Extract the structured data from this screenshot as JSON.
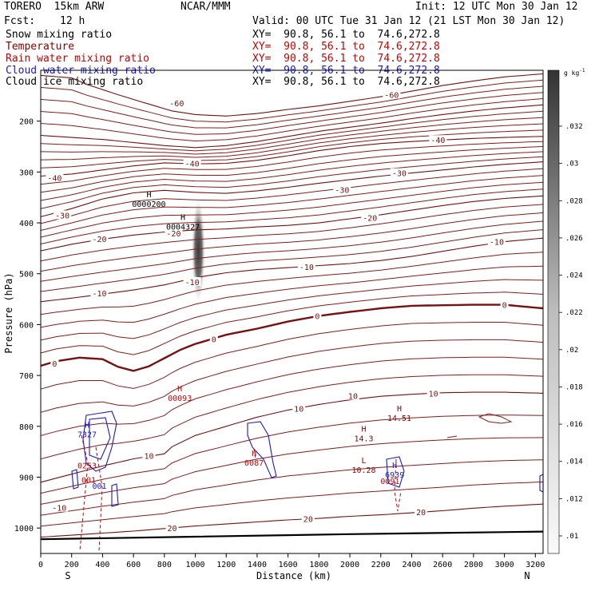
{
  "header": {
    "model": "TORERO  15km ARW",
    "center": "NCAR/MMM",
    "init": "Init: 12 UTC Mon 30 Jan 12",
    "fcst_label": "Fcst:",
    "fcst_value": "12 h",
    "valid": "Valid: 00 UTC Tue 31 Jan 12 (21 LST Mon 30 Jan 12)"
  },
  "fields": [
    {
      "name": "Snow mixing ratio",
      "xy": "XY=  90.8, 56.1 to  74.6,272.8",
      "color": "#000000"
    },
    {
      "name": "Temperature",
      "xy": "XY=  90.8, 56.1 to  74.6,272.8",
      "color": "#8b0000"
    },
    {
      "name": "Rain water mixing ratio",
      "xy": "XY=  90.8, 56.1 to  74.6,272.8",
      "color": "#cc0000"
    },
    {
      "name": "Cloud water mixing ratio",
      "xy": "XY=  90.8, 56.1 to  74.6,272.8",
      "color": "#1a1acc"
    },
    {
      "name": "Cloud ice mixing ratio",
      "xy": "XY=  90.8, 56.1 to  74.6,272.8",
      "color": "#000000"
    }
  ],
  "chart_data": {
    "type": "contour cross-section",
    "xlabel": "Distance (km)",
    "ylabel": "Pressure (hPa)",
    "xlim": [
      0,
      3250
    ],
    "ylim": [
      1050,
      100
    ],
    "x_ticks": [
      0,
      200,
      400,
      600,
      800,
      1000,
      1200,
      1400,
      1600,
      1800,
      2000,
      2200,
      2400,
      2600,
      2800,
      3000,
      3200
    ],
    "y_ticks": [
      200,
      300,
      400,
      500,
      600,
      700,
      800,
      900,
      1000
    ],
    "end_labels": {
      "left": "S",
      "right": "N"
    },
    "colorbar": {
      "unit": "g kg",
      "unit_exp": "-1",
      "ticks": [
        ".01",
        ".012",
        ".014",
        ".016",
        ".018",
        ".02",
        ".022",
        ".024",
        ".026",
        ".028",
        ".03",
        ".032"
      ]
    },
    "temperature_contours": [
      {
        "label": "-60",
        "x": [
          0,
          200,
          300,
          500,
          650,
          850,
          1000,
          1200,
          1400,
          1600,
          1800,
          2000,
          2200,
          2400,
          2600,
          2800,
          3000,
          3250
        ],
        "p": [
          110,
          115,
          128,
          148,
          162,
          180,
          187,
          190,
          185,
          177,
          170,
          161,
          152,
          141,
          130,
          121,
          113,
          107
        ],
        "label_at": [
          [
            880,
            164
          ],
          [
            2270,
            148
          ]
        ]
      },
      {
        "label": "-50",
        "x": [
          0,
          200,
          400,
          600,
          800,
          1000,
          1200,
          1400,
          1600,
          1800,
          2000,
          2200,
          2400,
          2600,
          2800,
          3000,
          3250
        ],
        "p": [
          228,
          232,
          236,
          242,
          248,
          252,
          248,
          240,
          230,
          220,
          212,
          204,
          195,
          187,
          180,
          174,
          168
        ],
        "label_at": []
      },
      {
        "label": "-40",
        "x": [
          0,
          200,
          400,
          600,
          800,
          1000,
          1200,
          1400,
          1600,
          1800,
          2000,
          2200,
          2400,
          2600,
          2800,
          3000,
          3250
        ],
        "p": [
          308,
          304,
          296,
          288,
          282,
          284,
          283,
          277,
          268,
          258,
          250,
          244,
          240,
          237,
          234,
          232,
          230
        ],
        "label_at": [
          [
            980,
            283
          ],
          [
            2570,
            237
          ]
        ]
      },
      {
        "label": "-30",
        "x": [
          0,
          200,
          400,
          600,
          800,
          1000,
          1200,
          1400,
          1600,
          1800,
          2000,
          2200,
          2400,
          2600,
          2800,
          3000,
          3250
        ],
        "p": [
          388,
          372,
          353,
          341,
          336,
          340,
          342,
          337,
          330,
          322,
          315,
          308,
          302,
          296,
          290,
          285,
          280
        ],
        "label_at": [
          [
            140,
            385
          ],
          [
            2320,
            302
          ]
        ]
      },
      {
        "label": "-20",
        "x": [
          0,
          200,
          400,
          600,
          800,
          1000,
          1200,
          1400,
          1600,
          1800,
          2000,
          2200,
          2400,
          2600,
          2800,
          3000,
          3250
        ],
        "p": [
          455,
          442,
          432,
          424,
          418,
          414,
          412,
          408,
          405,
          400,
          392,
          384,
          375,
          366,
          358,
          352,
          347
        ],
        "label_at": [
          [
            380,
            431
          ],
          [
            2130,
            390
          ]
        ]
      },
      {
        "label": "-10",
        "x": [
          0,
          200,
          400,
          600,
          800,
          1000,
          1200,
          1400,
          1600,
          1800,
          2000,
          2200,
          2400,
          2600,
          2800,
          3000,
          3250
        ],
        "p": [
          555,
          548,
          540,
          532,
          522,
          508,
          498,
          492,
          488,
          484,
          480,
          474,
          466,
          456,
          446,
          437,
          430
        ],
        "label_at": [
          [
            380,
            538
          ],
          [
            2950,
            437
          ]
        ]
      },
      {
        "label": "0",
        "x": [
          0,
          100,
          250,
          400,
          500,
          600,
          700,
          800,
          900,
          1000,
          1200,
          1400,
          1600,
          1800,
          2000,
          2200,
          2400,
          2600,
          2800,
          3000,
          3250
        ],
        "p": [
          681,
          672,
          665,
          668,
          683,
          691,
          682,
          666,
          650,
          638,
          620,
          608,
          594,
          583,
          575,
          568,
          563,
          562,
          561,
          561,
          568
        ],
        "label_at": [
          [
            90,
            676
          ],
          [
            1120,
            628
          ],
          [
            3000,
            561
          ]
        ]
      },
      {
        "label": "10",
        "x": [
          0,
          200,
          400,
          600,
          800,
          850,
          1000,
          1200,
          1400,
          1600,
          1800,
          2000,
          2200,
          2400,
          2600,
          2800,
          3000,
          3250
        ],
        "p": [
          910,
          894,
          878,
          864,
          854,
          840,
          818,
          800,
          782,
          768,
          757,
          748,
          741,
          737,
          734,
          733,
          733,
          735
        ],
        "label_at": [
          [
            700,
            858
          ],
          [
            2020,
            740
          ]
        ]
      },
      {
        "label": "20",
        "x": [
          0,
          200,
          400,
          600,
          800,
          1000,
          1200,
          1400,
          1600,
          1800,
          2000,
          2200,
          2400,
          2600,
          2800,
          3000,
          3250
        ],
        "p": [
          1018,
          1014,
          1010,
          1006,
          1001,
          996,
          992,
          988,
          984,
          981,
          977,
          974,
          970,
          966,
          961,
          957,
          953
        ],
        "label_at": [
          [
            850,
            1000
          ],
          [
            2460,
            968
          ]
        ]
      }
    ],
    "temperature_labels": [
      {
        "text": "-60",
        "x": 880,
        "p": 164
      },
      {
        "text": "-60",
        "x": 2270,
        "p": 148
      },
      {
        "text": "-40",
        "x": 980,
        "p": 283
      },
      {
        "text": "-40",
        "x": 2570,
        "p": 237
      },
      {
        "text": "-40",
        "x": 90,
        "p": 311
      },
      {
        "text": "-30",
        "x": 140,
        "p": 385
      },
      {
        "text": "-30",
        "x": 2320,
        "p": 302
      },
      {
        "text": "-30",
        "x": 1950,
        "p": 335
      },
      {
        "text": "-20",
        "x": 380,
        "p": 431
      },
      {
        "text": "-20",
        "x": 2130,
        "p": 390
      },
      {
        "text": "-20",
        "x": 860,
        "p": 420
      },
      {
        "text": "-10",
        "x": 380,
        "p": 538
      },
      {
        "text": "-10",
        "x": 2950,
        "p": 437
      },
      {
        "text": "-10",
        "x": 1720,
        "p": 486
      },
      {
        "text": "-10",
        "x": 980,
        "p": 516
      },
      {
        "text": "0",
        "x": 90,
        "p": 676
      },
      {
        "text": "0",
        "x": 1120,
        "p": 628
      },
      {
        "text": "0",
        "x": 1790,
        "p": 583
      },
      {
        "text": "0",
        "x": 3000,
        "p": 561
      },
      {
        "text": "10",
        "x": 700,
        "p": 858
      },
      {
        "text": "10",
        "x": 2020,
        "p": 740
      },
      {
        "text": "10",
        "x": 1670,
        "p": 765
      },
      {
        "text": "10",
        "x": 2540,
        "p": 735
      },
      {
        "text": "-10",
        "x": 120,
        "p": 960
      },
      {
        "text": "20",
        "x": 850,
        "p": 1000
      },
      {
        "text": "20",
        "x": 1730,
        "p": 982
      },
      {
        "text": "20",
        "x": 2460,
        "p": 968
      }
    ],
    "extrema_labels": [
      {
        "mark": "H",
        "value": "0000200",
        "x": 700,
        "p": 365,
        "color": "#000000"
      },
      {
        "mark": "H",
        "value": "0004327",
        "x": 920,
        "p": 410,
        "color": "#000000"
      },
      {
        "mark": "H",
        "value": "00093",
        "x": 900,
        "p": 747,
        "color": "#cc0000"
      },
      {
        "mark": "H",
        "value": "14.3",
        "x": 2090,
        "p": 826,
        "color": "#8b0000"
      },
      {
        "mark": "H",
        "value": "14.51",
        "x": 2320,
        "p": 786,
        "color": "#8b0000"
      },
      {
        "mark": "L",
        "value": "10.28",
        "x": 2090,
        "p": 888,
        "color": "#8b0000"
      },
      {
        "mark": "H",
        "value": "7327",
        "x": 300,
        "p": 818,
        "color": "#1a1acc"
      },
      {
        "mark": "",
        "value": "0253",
        "x": 300,
        "p": 880,
        "color": "#cc0000"
      },
      {
        "mark": "",
        "value": "001",
        "x": 310,
        "p": 908,
        "color": "#cc0000"
      },
      {
        "mark": "",
        "value": "001",
        "x": 380,
        "p": 920,
        "color": "#1a1acc"
      },
      {
        "mark": "H",
        "value": "0087",
        "x": 1380,
        "p": 874,
        "color": "#cc0000"
      },
      {
        "mark": "H",
        "value": "6939",
        "x": 2290,
        "p": 898,
        "color": "#1a1acc"
      },
      {
        "mark": "",
        "value": "0091",
        "x": 2260,
        "p": 910,
        "color": "#cc0000"
      }
    ],
    "snow_plume": {
      "x_center": 1020,
      "p_top": 360,
      "p_bottom": 570
    }
  }
}
